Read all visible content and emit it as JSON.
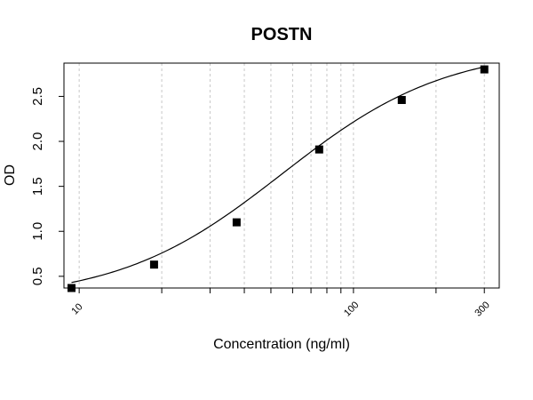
{
  "chart_data": {
    "type": "scatter",
    "title": "POSTN",
    "xlabel": "Concentration (ng/ml)",
    "ylabel": "OD",
    "x_scale": "log",
    "xlim": [
      8.8,
      340
    ],
    "ylim": [
      0.37,
      2.87
    ],
    "x_ticks": [
      10,
      100,
      300
    ],
    "y_ticks": [
      0.5,
      1.0,
      1.5,
      2.0,
      2.5
    ],
    "y_tick_labels": [
      "0.5",
      "1.0",
      "1.5",
      "2.0",
      "2.5"
    ],
    "x_gridlines": [
      10,
      20,
      30,
      40,
      50,
      60,
      70,
      80,
      90,
      100,
      200,
      300
    ],
    "grid": true,
    "points": [
      {
        "x": 9.375,
        "y": 0.37
      },
      {
        "x": 18.75,
        "y": 0.63
      },
      {
        "x": 37.5,
        "y": 1.1
      },
      {
        "x": 75,
        "y": 1.91
      },
      {
        "x": 150,
        "y": 2.46
      },
      {
        "x": 300,
        "y": 2.8
      }
    ],
    "fit_curve": {
      "model": "4-parameter logistic",
      "bottom": 0.23,
      "top": 3.05,
      "ec50": 55,
      "hill": 1.45
    },
    "colors": {
      "points": "#000000",
      "curve": "#000000",
      "grid": "#c8c8c8"
    }
  }
}
